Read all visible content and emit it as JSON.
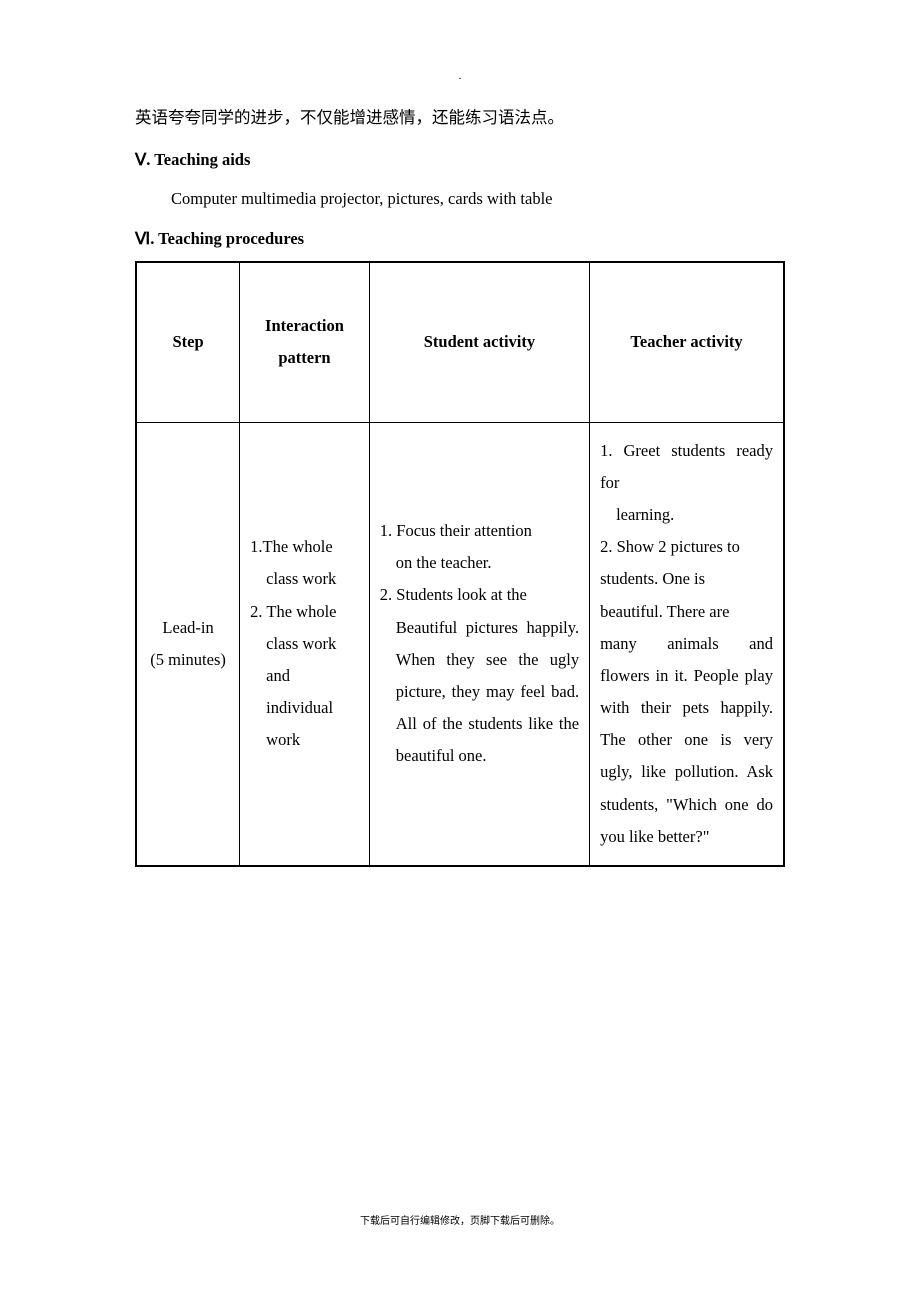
{
  "header_dot": ".",
  "intro_paragraph": "英语夸夸同学的进步，不仅能增进感情，还能练习语法点。",
  "section_v": {
    "numeral": "Ⅴ",
    "title": ". Teaching aids",
    "content": "Computer multimedia projector, pictures, cards with table"
  },
  "section_vi": {
    "numeral": "Ⅵ",
    "title": ". Teaching procedures"
  },
  "table": {
    "headers": {
      "step": "Step",
      "interaction": "Interaction pattern",
      "student": "Student activity",
      "teacher": "Teacher activity"
    },
    "row1": {
      "step_label": "Lead-in",
      "step_time": "(5 minutes)",
      "interaction_1": "1.The whole",
      "interaction_1b": "class work",
      "interaction_2": "2. The whole",
      "interaction_2b": "class work",
      "interaction_2c": "and  individual",
      "interaction_2d": "work",
      "student_1": "1. Focus their attention",
      "student_1b": "on the teacher.",
      "student_2": "2. Students look at the",
      "student_2b": "Beautiful  pictures  happily.  When  they  see  the  ugly picture, they may feel bad. All of the students like the beautiful one.",
      "teacher_1": "1. Greet students ready for",
      "teacher_1b": "learning.",
      "teacher_2": "2. Show 2 pictures to",
      "teacher_2b": "students. One is",
      "teacher_2c": "beautiful. There are",
      "teacher_2d": "many animals and flowers in it. People play with their pets happily. The other one is very ugly,  like  pollution.  Ask students, \"Which one do you like better?\""
    }
  },
  "footer": "下载后可自行编辑修改，页脚下载后可删除。"
}
